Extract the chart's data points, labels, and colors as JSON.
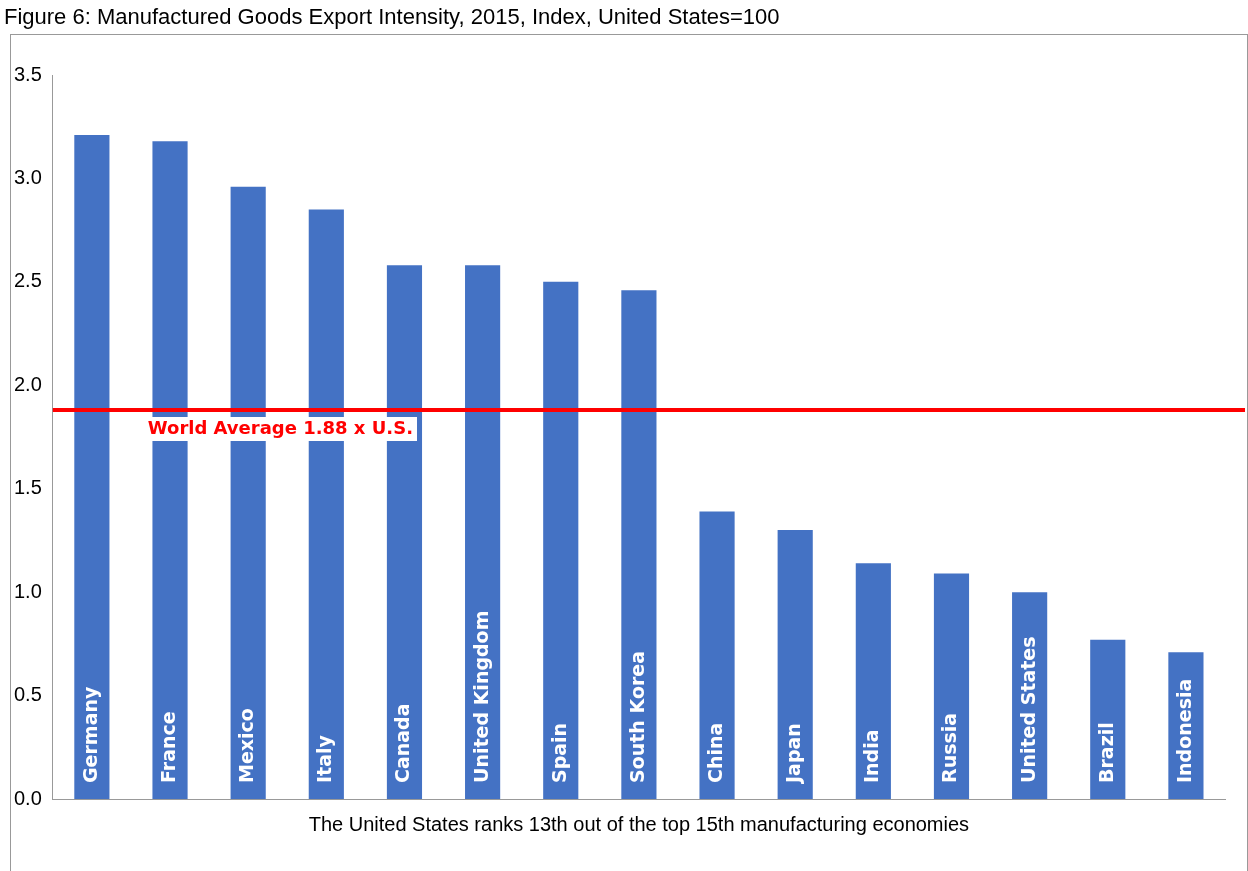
{
  "chart_data": {
    "type": "bar",
    "title": "Figure 6: Manufactured Goods Export Intensity, 2015, Index, United States=100",
    "categories": [
      "Germany",
      "France",
      "Mexico",
      "Italy",
      "Canada",
      "United Kingdom",
      "Spain",
      "South Korea",
      "China",
      "Japan",
      "India",
      "Russia",
      "United States",
      "Brazil",
      "Indonesia"
    ],
    "values": [
      3.21,
      3.18,
      2.96,
      2.85,
      2.58,
      2.58,
      2.5,
      2.46,
      1.39,
      1.3,
      1.14,
      1.09,
      1.0,
      0.77,
      0.71
    ],
    "color": "#4472c4",
    "ylim": [
      0,
      3.5
    ],
    "yticks": [
      {
        "value": 0,
        "label": "0.0"
      },
      {
        "value": 0.5,
        "label": "0.5"
      },
      {
        "value": 1,
        "label": "1.0"
      },
      {
        "value": 1.5,
        "label": "1.5"
      },
      {
        "value": 2,
        "label": "2.0"
      },
      {
        "value": 2.5,
        "label": "2.5"
      },
      {
        "value": 3,
        "label": "3.0"
      },
      {
        "value": 3.5,
        "label": "3.5"
      }
    ],
    "grid": false,
    "legend": false,
    "xlabel": "The United States ranks 13th out of the top 15th manufacturing economies",
    "ref_lines": [
      {
        "axis": "y",
        "value": 1.88,
        "label": "World Average 1.88 x U.S.",
        "color": "#ff0000"
      }
    ]
  }
}
